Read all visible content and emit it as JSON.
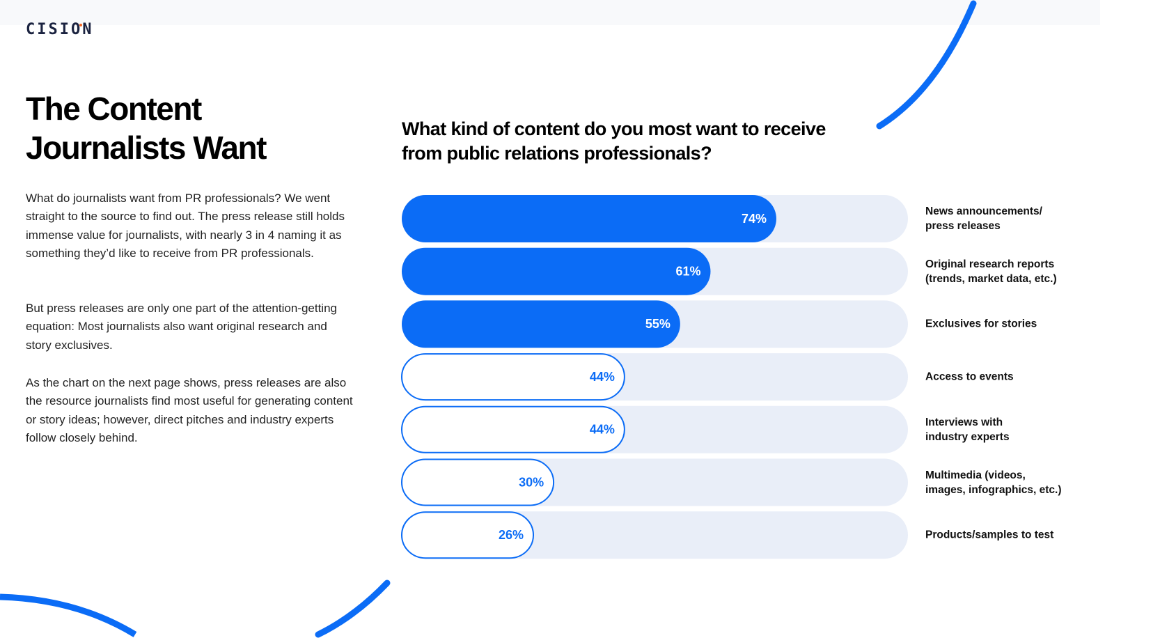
{
  "logo": "CISION",
  "heading": "The Content Journalists Want",
  "paragraphs": [
    "What do journalists want from PR professionals? We went straight to the source to find out. The press release still holds immense value for journalists, with nearly 3 in 4 naming it as something they’d like to receive from PR professionals.",
    "But press releases are only one part of the attention-getting equation: Most journalists also want original research and story exclusives.",
    "As the chart on the next page shows, press releases are also the resource journalists find most useful for generating content or story ideas; however, direct pitches and industry experts follow closely behind."
  ],
  "chart_data": {
    "type": "bar",
    "title": "What kind of content do you most want to receive from public relations professionals?",
    "categories": [
      "News announcements/\npress releases",
      "Original research reports\n(trends, market data, etc.)",
      "Exclusives for stories",
      "Access to events",
      "Interviews with\nindustry experts",
      "Multimedia (videos,\nimages, infographics, etc.)",
      "Products/samples to test"
    ],
    "values": [
      74,
      61,
      55,
      44,
      44,
      30,
      26
    ],
    "value_labels": [
      "74%",
      "61%",
      "55%",
      "44%",
      "44%",
      "30%",
      "26%"
    ],
    "colors": [
      "#0b6cf6",
      "#0b6cf6",
      "#0b6cf6",
      "#ffffff",
      "#ffffff",
      "#ffffff",
      "#ffffff"
    ],
    "xlim": [
      0,
      100
    ]
  }
}
